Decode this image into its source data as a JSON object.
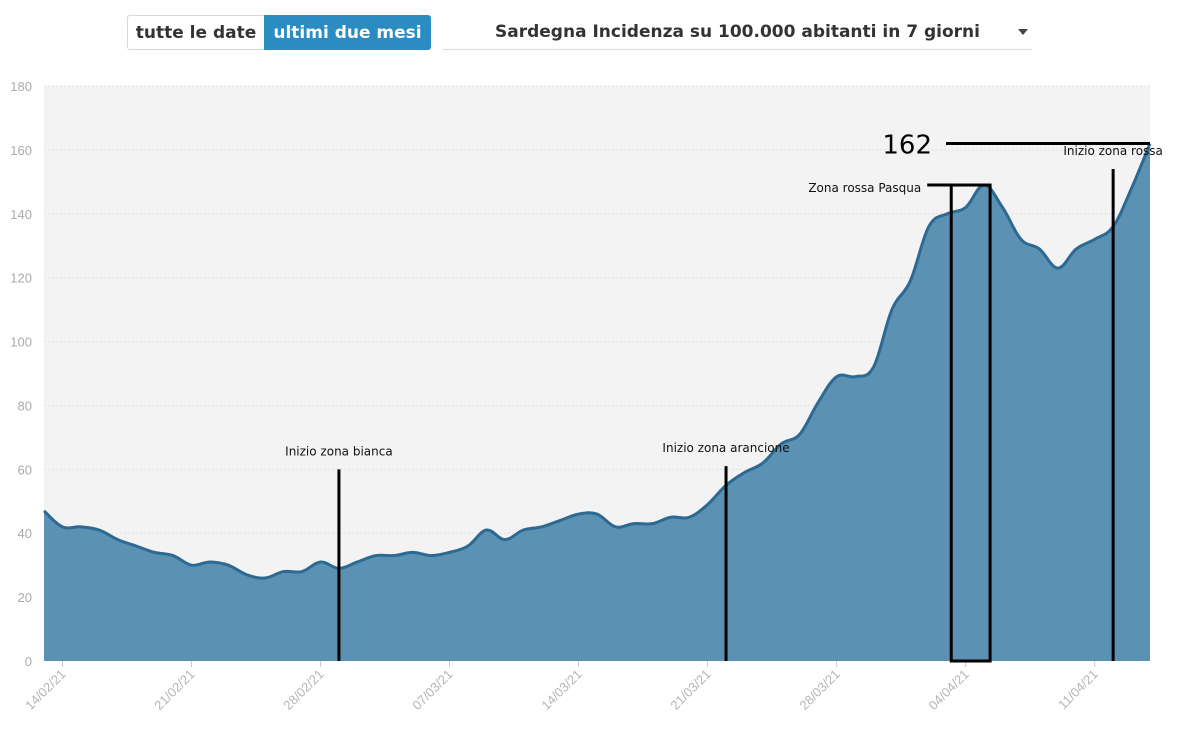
{
  "toolbar": {
    "all_dates_label": "tutte le date",
    "last_two_months_label": "ultimi due mesi",
    "selected_series": "Sardegna Incidenza su 100.000 abitanti in 7 giorni",
    "active_button": "ultimi due mesi"
  },
  "chart_data": {
    "type": "area",
    "title": "Sardegna Incidenza su 100.000 abitanti in 7 giorni",
    "xlabel": "",
    "ylabel": "",
    "ylim": [
      0,
      180
    ],
    "yticks": [
      0,
      20,
      40,
      60,
      80,
      100,
      120,
      140,
      160,
      180
    ],
    "xticks": [
      "14/02/21",
      "21/02/21",
      "28/02/21",
      "07/03/21",
      "14/03/21",
      "21/03/21",
      "28/03/21",
      "04/04/21",
      "11/04/21"
    ],
    "grid": true,
    "fill_color": "#5b91b3",
    "line_color": "#2c6a94",
    "background": "#f3f3f3",
    "x": [
      "13/02/21",
      "14/02/21",
      "15/02/21",
      "16/02/21",
      "17/02/21",
      "18/02/21",
      "19/02/21",
      "20/02/21",
      "21/02/21",
      "22/02/21",
      "23/02/21",
      "24/02/21",
      "25/02/21",
      "26/02/21",
      "27/02/21",
      "28/02/21",
      "01/03/21",
      "02/03/21",
      "03/03/21",
      "04/03/21",
      "05/03/21",
      "06/03/21",
      "07/03/21",
      "08/03/21",
      "09/03/21",
      "10/03/21",
      "11/03/21",
      "12/03/21",
      "13/03/21",
      "14/03/21",
      "15/03/21",
      "16/03/21",
      "17/03/21",
      "18/03/21",
      "19/03/21",
      "20/03/21",
      "21/03/21",
      "22/03/21",
      "23/03/21",
      "24/03/21",
      "25/03/21",
      "26/03/21",
      "27/03/21",
      "28/03/21",
      "29/03/21",
      "30/03/21",
      "31/03/21",
      "01/04/21",
      "02/04/21",
      "03/04/21",
      "04/04/21",
      "05/04/21",
      "06/04/21",
      "07/04/21",
      "08/04/21",
      "09/04/21",
      "10/04/21",
      "11/04/21",
      "12/04/21",
      "13/04/21",
      "14/04/21"
    ],
    "values": [
      47,
      42,
      42,
      41,
      38,
      36,
      34,
      33,
      30,
      31,
      30,
      27,
      26,
      28,
      28,
      31,
      29,
      31,
      33,
      33,
      34,
      33,
      34,
      36,
      41,
      38,
      41,
      42,
      44,
      46,
      46,
      42,
      43,
      43,
      45,
      45,
      49,
      55,
      59,
      62,
      68,
      71,
      81,
      89,
      89,
      92,
      110,
      119,
      136,
      140,
      142,
      149,
      142,
      132,
      129,
      123,
      129,
      132,
      136,
      148,
      162
    ],
    "series": [
      {
        "name": "Sardegna Incidenza su 100.000 abitanti in 7 giorni",
        "values": [
          47,
          42,
          42,
          41,
          38,
          36,
          34,
          33,
          30,
          31,
          30,
          27,
          26,
          28,
          28,
          31,
          29,
          31,
          33,
          33,
          34,
          33,
          34,
          36,
          41,
          38,
          41,
          42,
          44,
          46,
          46,
          42,
          43,
          43,
          45,
          45,
          49,
          55,
          59,
          62,
          68,
          71,
          81,
          89,
          89,
          92,
          110,
          119,
          136,
          140,
          142,
          149,
          142,
          132,
          129,
          123,
          129,
          132,
          136,
          148,
          162
        ]
      }
    ],
    "annotations": [
      {
        "text": "Inizio zona bianca",
        "date": "01/03/21",
        "type": "vline",
        "top_value": 60
      },
      {
        "text": "Inizio zona arancione",
        "date": "22/03/21",
        "type": "vline",
        "top_value": 61
      },
      {
        "text": "Zona rossa Pasqua",
        "date_start": "03/04/21",
        "date_end": "05/04/21",
        "type": "box",
        "top_value": 149
      },
      {
        "text": "Inizio zona rossa",
        "date": "12/04/21",
        "type": "vline",
        "top_value": 154
      },
      {
        "text": "162",
        "type": "hline",
        "value": 162
      }
    ]
  }
}
